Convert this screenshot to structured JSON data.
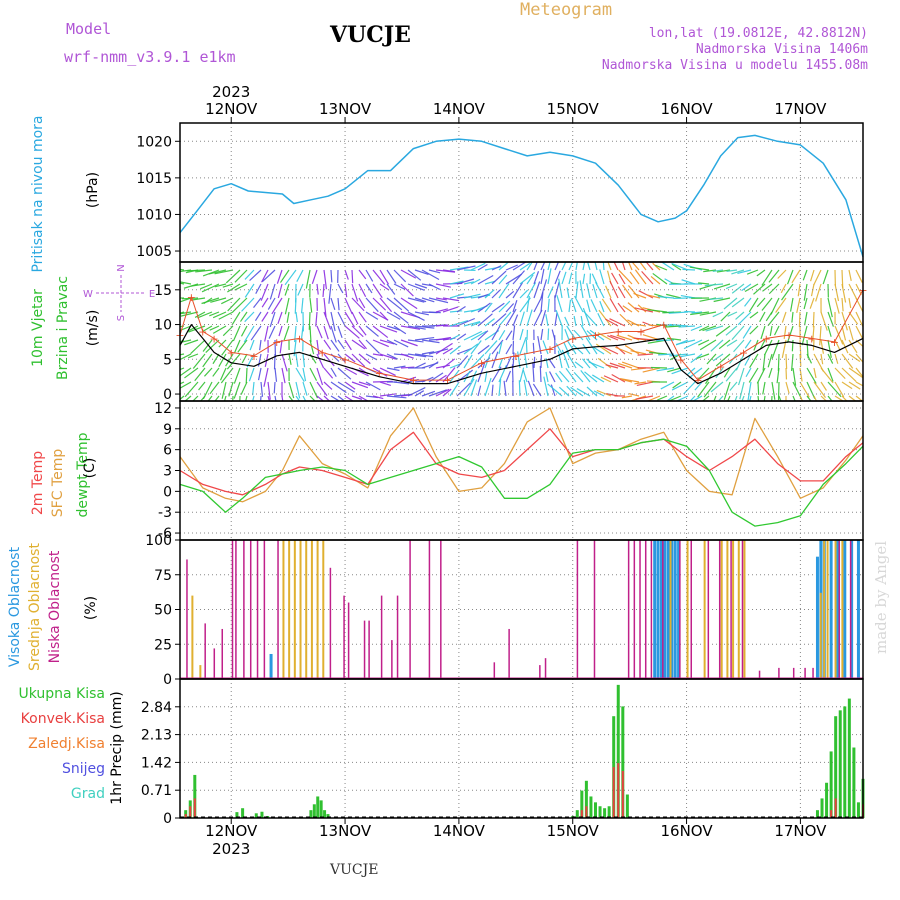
{
  "header": {
    "model_label": "Model",
    "model_name": "wrf-nmm_v3.9.1  e1km",
    "station": "VUCJE",
    "meteogram": "Meteogram",
    "lonlat": "lon,lat (19.0812E, 42.8812N)",
    "elevation": "Nadmorska Visina 1406m",
    "model_elevation": "Nadmorska Visina u modelu 1455.08m"
  },
  "footer": {
    "station": "VUCJE",
    "watermark": "made by Angel"
  },
  "time_axis": {
    "year": "2023",
    "day_labels": [
      "12NOV",
      "13NOV",
      "14NOV",
      "15NOV",
      "16NOV",
      "17NOV"
    ],
    "day_positions": [
      1,
      2,
      3,
      4,
      5,
      6
    ],
    "start": 0.55,
    "end": 6.55
  },
  "colors": {
    "pressure": "#2aa8e0",
    "wind_speed": "#000000",
    "wind_gust": "#e8502a",
    "temp_2m": "#f0484a",
    "temp_sfc": "#e0a040",
    "temp_dew": "#30c830",
    "cloud_high": "#2a98e0",
    "cloud_mid": "#e0b030",
    "cloud_low": "#c0208a",
    "precip_total": "#30c030",
    "precip_conv": "#e84040",
    "precip_frz": "#f08030",
    "snow": "#5050e0",
    "graupel": "#40d0c0"
  },
  "panels": {
    "pressure": {
      "label1": "Pritisak na nivou mora",
      "unit": "(hPa)"
    },
    "wind": {
      "label1": "10m Vjetar",
      "label2": "Brzina i Pravac",
      "unit": "(m/s)",
      "compass_n": "N",
      "compass_s": "S",
      "compass_e": "E",
      "compass_w": "W"
    },
    "temp": {
      "label1": "2m Temp",
      "label2": "SFC Temp",
      "label3": "dewpt Temp",
      "unit": "(C)"
    },
    "cloud": {
      "label1": "Visoka Oblacnost",
      "label2": "Srednja Oblacnost",
      "label3": "Niska Oblacnost",
      "unit": "(%)"
    },
    "precip": {
      "label_total": "Ukupna Kisa",
      "label_conv": "Konvek.Kisa",
      "label_frz": "Zaledj.Kisa",
      "label_snow": "Snijeg",
      "label_grad": "Grad",
      "unit": "1hr Precip (mm)"
    }
  },
  "chart_data": [
    {
      "type": "line",
      "panel": "pressure",
      "ylim": [
        1003.5,
        1022.5
      ],
      "yticks": [
        1005,
        1010,
        1015,
        1020
      ],
      "series": [
        {
          "x": [
            0.55,
            0.7,
            0.85,
            1.0,
            1.15,
            1.3,
            1.45,
            1.55,
            1.7,
            1.85,
            2.0,
            2.2,
            2.4,
            2.6,
            2.8,
            3.0,
            3.2,
            3.4,
            3.6,
            3.8,
            4.0,
            4.2,
            4.4,
            4.6,
            4.75,
            4.9,
            5.0,
            5.15,
            5.3,
            5.45,
            5.6,
            5.8,
            6.0,
            6.2,
            6.4,
            6.55
          ],
          "y": [
            1007.5,
            1010.5,
            1013.5,
            1014.2,
            1013.2,
            1013.0,
            1012.8,
            1011.5,
            1012.0,
            1012.5,
            1013.5,
            1016.0,
            1016.0,
            1019.0,
            1020.0,
            1020.3,
            1020.0,
            1019.0,
            1018.0,
            1018.5,
            1018.0,
            1017.0,
            1014.0,
            1010.0,
            1009.0,
            1009.5,
            1010.5,
            1014.0,
            1018.0,
            1020.5,
            1020.8,
            1020.0,
            1019.5,
            1017.0,
            1012.0,
            1004.2
          ]
        }
      ]
    },
    {
      "type": "line",
      "panel": "wind",
      "ylim": [
        -1,
        19
      ],
      "yticks": [
        0,
        5,
        10,
        15
      ],
      "series": [
        {
          "x": [
            0.55,
            0.65,
            0.75,
            0.85,
            1.0,
            1.2,
            1.4,
            1.6,
            1.8,
            2.0,
            2.3,
            2.6,
            2.9,
            3.2,
            3.5,
            3.8,
            4.0,
            4.2,
            4.4,
            4.6,
            4.8,
            4.95,
            5.1,
            5.3,
            5.5,
            5.7,
            5.9,
            6.1,
            6.3,
            6.55
          ],
          "y": [
            7,
            10,
            8,
            6,
            4.5,
            4,
            5.5,
            6,
            5,
            4,
            2.5,
            1.5,
            1.5,
            3,
            4,
            5,
            6.5,
            6.8,
            7,
            7.5,
            8,
            3.5,
            1.5,
            3,
            5,
            7,
            7.5,
            7,
            6,
            8
          ]
        },
        {
          "x": [
            0.55,
            0.65,
            0.75,
            0.85,
            1.0,
            1.2,
            1.4,
            1.6,
            1.8,
            2.0,
            2.3,
            2.6,
            2.9,
            3.2,
            3.5,
            3.8,
            4.0,
            4.2,
            4.4,
            4.6,
            4.8,
            4.95,
            5.1,
            5.3,
            5.5,
            5.7,
            5.9,
            6.1,
            6.3,
            6.55
          ],
          "y": [
            8.5,
            14,
            9,
            8,
            6,
            5.5,
            7.5,
            8,
            6,
            5,
            3,
            2,
            2,
            4.5,
            5.5,
            6.5,
            8,
            8.5,
            9,
            9,
            10,
            5,
            2,
            4,
            6,
            8,
            8.5,
            8,
            7.5,
            15
          ]
        }
      ]
    },
    {
      "type": "line",
      "panel": "temp",
      "ylim": [
        -7,
        13
      ],
      "yticks": [
        -6,
        -3,
        0,
        3,
        6,
        9,
        12
      ],
      "series": [
        {
          "x": [
            0.55,
            0.75,
            0.95,
            1.1,
            1.3,
            1.45,
            1.6,
            1.8,
            2.0,
            2.2,
            2.4,
            2.6,
            2.8,
            3.0,
            3.2,
            3.4,
            3.6,
            3.8,
            4.0,
            4.2,
            4.4,
            4.6,
            4.8,
            5.0,
            5.2,
            5.4,
            5.6,
            5.8,
            6.0,
            6.2,
            6.4,
            6.55
          ],
          "y": [
            3,
            1,
            0,
            -0.5,
            1,
            2.5,
            3.5,
            3,
            2,
            1,
            6,
            8.5,
            4,
            2.5,
            2,
            3,
            6,
            9,
            5,
            6,
            6,
            7,
            7.5,
            5,
            3,
            5,
            7.5,
            4,
            1.5,
            1.5,
            5,
            7
          ]
        },
        {
          "x": [
            0.55,
            0.75,
            0.95,
            1.1,
            1.3,
            1.45,
            1.6,
            1.8,
            2.0,
            2.2,
            2.4,
            2.6,
            2.8,
            3.0,
            3.2,
            3.4,
            3.6,
            3.8,
            4.0,
            4.2,
            4.4,
            4.6,
            4.8,
            5.0,
            5.2,
            5.4,
            5.6,
            5.8,
            6.0,
            6.2,
            6.4,
            6.55
          ],
          "y": [
            5,
            0.5,
            -1,
            -1.5,
            0,
            3,
            8,
            4,
            2.5,
            0.5,
            8,
            12,
            5,
            0,
            0.5,
            4,
            10,
            12,
            4,
            5.5,
            6,
            7.5,
            8.5,
            3,
            0,
            -0.5,
            10.5,
            5,
            -1,
            0.5,
            4.5,
            8
          ]
        },
        {
          "x": [
            0.55,
            0.75,
            0.95,
            1.1,
            1.3,
            1.45,
            1.6,
            1.8,
            2.0,
            2.2,
            2.4,
            2.6,
            2.8,
            3.0,
            3.2,
            3.4,
            3.6,
            3.8,
            4.0,
            4.2,
            4.4,
            4.6,
            4.8,
            5.0,
            5.2,
            5.4,
            5.6,
            5.8,
            6.0,
            6.2,
            6.4,
            6.55
          ],
          "y": [
            1,
            0,
            -3,
            -1,
            2,
            2.5,
            3,
            3.5,
            3,
            1,
            2,
            3,
            4,
            5,
            3.5,
            -1,
            -1,
            1,
            5.5,
            6,
            6,
            7,
            7.5,
            6.5,
            3,
            -3,
            -5,
            -4.5,
            -3.5,
            1,
            4,
            6.5
          ]
        }
      ]
    },
    {
      "type": "bar",
      "panel": "cloud",
      "ylim": [
        0,
        100
      ],
      "yticks": [
        0,
        25,
        50,
        75,
        100
      ],
      "series": [
        {
          "name": "high",
          "x": [
            1.35,
            4.72,
            4.75,
            4.78,
            4.81,
            4.84,
            4.87,
            4.9,
            4.93,
            6.15,
            6.18,
            6.21,
            6.27,
            6.33,
            6.39,
            6.45,
            6.51
          ],
          "values": [
            18,
            100,
            100,
            100,
            100,
            100,
            100,
            100,
            100,
            88,
            100,
            100,
            100,
            100,
            100,
            100,
            100
          ]
        },
        {
          "name": "mid",
          "x": [
            0.65,
            0.72,
            1.45,
            1.5,
            1.55,
            1.6,
            1.65,
            1.7,
            1.75,
            1.8,
            4.85,
            5.0,
            5.15,
            5.3,
            5.35,
            5.4,
            5.45,
            5.5,
            6.17,
            6.2,
            6.23,
            6.3,
            6.36
          ],
          "values": [
            60,
            10,
            100,
            100,
            100,
            100,
            100,
            100,
            100,
            100,
            100,
            100,
            100,
            100,
            100,
            100,
            100,
            100,
            62,
            100,
            100,
            100,
            100
          ]
        },
        {
          "name": "low",
          "x": [
            0.62,
            0.78,
            0.86,
            0.93,
            1.02,
            1.05,
            1.12,
            1.18,
            1.24,
            1.3,
            1.42,
            1.88,
            2.0,
            2.04,
            2.18,
            2.22,
            2.33,
            2.42,
            2.47,
            2.58,
            2.75,
            2.85,
            3.32,
            3.45,
            3.72,
            3.77,
            4.05,
            4.2,
            4.5,
            4.55,
            4.6,
            4.65,
            4.7,
            4.8,
            4.95,
            5.05,
            5.2,
            5.3,
            5.4,
            5.5,
            5.65,
            5.82,
            5.95,
            6.05,
            6.12,
            6.35,
            6.45
          ],
          "values": [
            86,
            40,
            22,
            36,
            100,
            100,
            100,
            100,
            100,
            100,
            100,
            80,
            60,
            55,
            42,
            42,
            60,
            28,
            60,
            100,
            100,
            100,
            12,
            36,
            10,
            15,
            100,
            100,
            100,
            100,
            100,
            100,
            100,
            100,
            100,
            100,
            100,
            100,
            100,
            100,
            6,
            8,
            8,
            8,
            8,
            100,
            100
          ]
        }
      ]
    },
    {
      "type": "bar",
      "panel": "precip",
      "ylim": [
        0,
        3.55
      ],
      "yticks": [
        0,
        0.71,
        1.42,
        2.13,
        2.84
      ],
      "series": [
        {
          "name": "total",
          "x": [
            0.6,
            0.64,
            0.68,
            1.05,
            1.1,
            1.22,
            1.27,
            1.32,
            1.7,
            1.73,
            1.76,
            1.79,
            1.82,
            1.85,
            4.0,
            4.04,
            4.08,
            4.12,
            4.16,
            4.2,
            4.24,
            4.28,
            4.32,
            4.36,
            4.4,
            4.44,
            4.48,
            6.15,
            6.19,
            6.23,
            6.27,
            6.31,
            6.35,
            6.39,
            6.43,
            6.47,
            6.51,
            6.55
          ],
          "values": [
            0.2,
            0.45,
            1.1,
            0.15,
            0.25,
            0.12,
            0.16,
            0.05,
            0.2,
            0.35,
            0.55,
            0.45,
            0.2,
            0.1,
            0.05,
            0.2,
            0.7,
            0.95,
            0.55,
            0.4,
            0.3,
            0.25,
            0.3,
            2.6,
            3.4,
            2.85,
            0.6,
            0.2,
            0.5,
            0.9,
            1.7,
            2.6,
            2.75,
            2.85,
            3.05,
            1.8,
            0.4,
            1.0
          ]
        },
        {
          "name": "conv",
          "x": [
            0.6,
            0.64,
            0.68,
            4.08,
            4.12,
            4.36,
            4.4,
            4.44,
            6.27,
            6.31,
            6.55
          ],
          "values": [
            0.1,
            0.3,
            0.5,
            0.2,
            0.3,
            1.3,
            1.4,
            1.2,
            0.2,
            0.5,
            0.35
          ]
        }
      ]
    }
  ]
}
